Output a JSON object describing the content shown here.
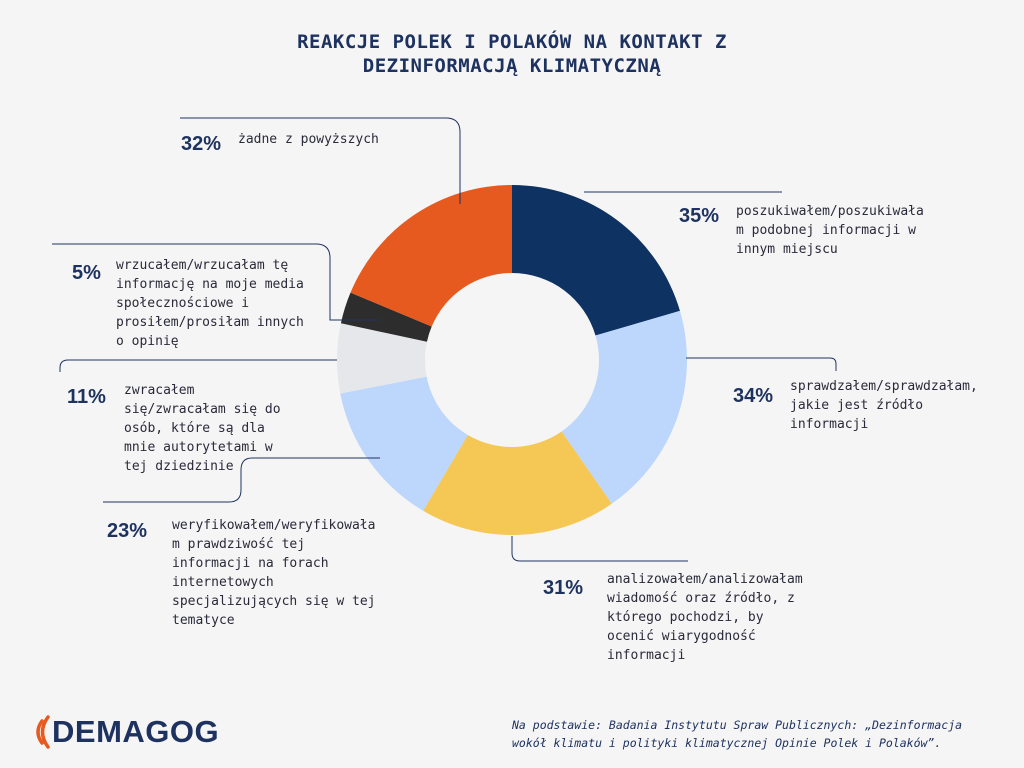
{
  "title_line1": "REAKCJE POLEK I POLAKÓW NA KONTAKT Z",
  "title_line2": "DEZINFORMACJĄ KLIMATYCZNĄ",
  "chart_data": {
    "type": "pie",
    "title": "REAKCJE POLEK I POLAKÓW NA KONTAKT Z DEZINFORMACJĄ KLIMATYCZNĄ",
    "slices": [
      {
        "label": "poszukiwałem/poszukiwała m podobnej informacji w innym miejscu",
        "value": 35,
        "display": "35%",
        "color": "#0e3262"
      },
      {
        "label": "sprawdzałem/sprawdzałam, jakie jest źródło informacji",
        "value": 34,
        "display": "34%",
        "color": "#bcd7fb"
      },
      {
        "label": "analizowałem/analizowałam wiadomość oraz źródło, z którego pochodzi, by ocenić wiarygodność informacji",
        "value": 31,
        "display": "31%",
        "color": "#f5c754"
      },
      {
        "label": "weryfikowałem/weryfikowała m prawdziwość tej informacji na forach internetowych specjalizujących się w tej tematyce",
        "value": 23,
        "display": "23%",
        "color": "#bcd7fb"
      },
      {
        "label": "zwracałem się/zwracałam się do osób, które są dla mnie autorytetami w tej dziedzinie",
        "value": 11,
        "display": "11%",
        "color": "#e6e7ea"
      },
      {
        "label": "wrzucałem/wrzucałam tę informację na moje media społecznościowe i prosiłem/prosiłam innych o opinię",
        "value": 5,
        "display": "5%",
        "color": "#2d2d2d"
      },
      {
        "label": "żadne z powyższych",
        "value": 32,
        "display": "32%",
        "color": "#e65a20"
      }
    ]
  },
  "labels": {
    "l0": [
      "poszukiwałem/poszukiwała",
      "m podobnej informacji w",
      "innym miejscu"
    ],
    "l1": [
      "sprawdzałem/sprawdzałam,",
      "jakie jest źródło",
      "informacji"
    ],
    "l2": [
      "analizowałem/analizowałam",
      "wiadomość oraz źródło, z",
      "którego pochodzi, by",
      "ocenić wiarygodność",
      "informacji"
    ],
    "l3": [
      "weryfikowałem/weryfikowała",
      "m prawdziwość tej",
      "informacji na forach",
      "internetowych",
      "specjalizujących się w tej",
      "tematyce"
    ],
    "l4": [
      "zwracałem",
      "się/zwracałam się do",
      "osób, które są dla",
      "mnie autorytetami w",
      "tej dziedzinie"
    ],
    "l5": [
      "wrzucałem/wrzucałam tę",
      "informację na moje media",
      "społecznościowe i",
      "prosiłem/prosiłam innych",
      "o opinię"
    ],
    "l6": [
      "żadne z powyższych"
    ]
  },
  "logo_text": "DEMAGOG",
  "source_line1": "Na podstawie: Badania Instytutu Spraw Publicznych: „Dezinformacja",
  "source_line2": "wokół klimatu i polityki klimatycznej Opinie Polek i Polaków”."
}
